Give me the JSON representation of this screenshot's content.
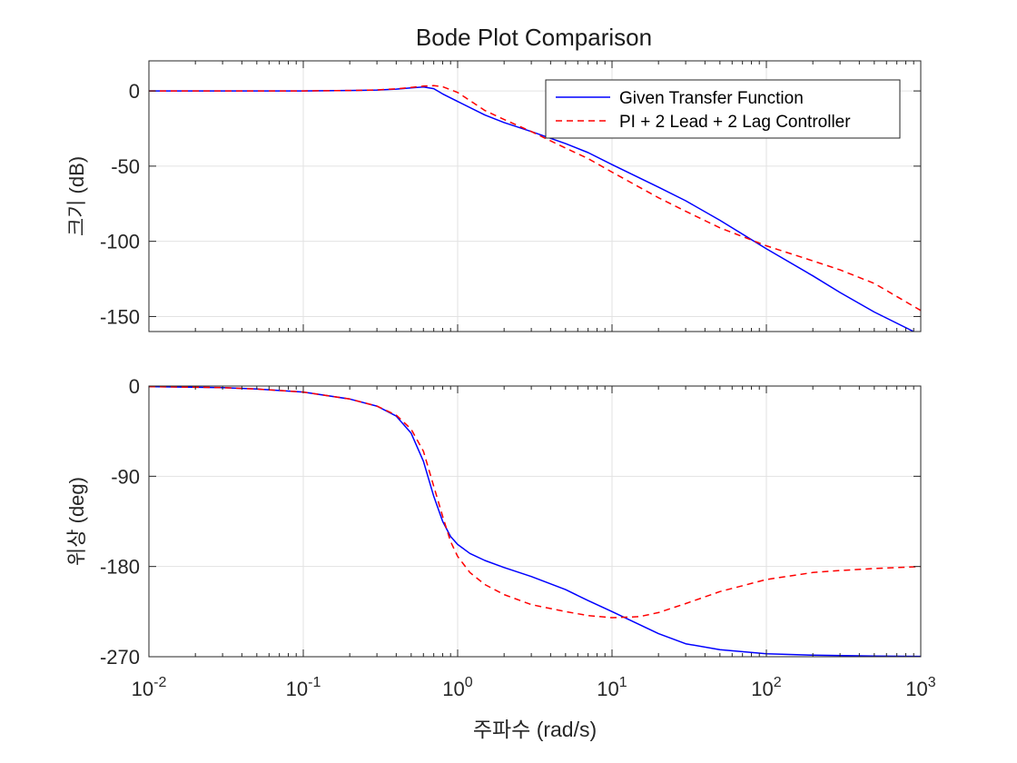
{
  "chart_data": {
    "type": "line",
    "title": "Bode Plot Comparison",
    "xlabel": "주파수 (rad/s)",
    "xscale": "log",
    "xlim": [
      0.01,
      1000
    ],
    "x_ticks": [
      {
        "value": 0.01,
        "base": "10",
        "exp": "-2"
      },
      {
        "value": 0.1,
        "base": "10",
        "exp": "-1"
      },
      {
        "value": 1,
        "base": "10",
        "exp": "0"
      },
      {
        "value": 10,
        "base": "10",
        "exp": "1"
      },
      {
        "value": 100,
        "base": "10",
        "exp": "2"
      },
      {
        "value": 1000,
        "base": "10",
        "exp": "3"
      }
    ],
    "grid": true,
    "colors": {
      "given": "#0000ff",
      "controller": "#ff0000",
      "grid": "#e2e2e2",
      "axis": "#262626",
      "text": "#262626"
    },
    "legend": {
      "placement": "top-right",
      "entries": [
        {
          "label": "Given Transfer Function",
          "style": "solid",
          "color": "#0000ff"
        },
        {
          "label": "PI + 2 Lead + 2 Lag Controller",
          "style": "dashed",
          "color": "#ff0000"
        }
      ]
    },
    "panels": [
      {
        "id": "magnitude",
        "ylabel": "크기 (dB)",
        "ylim": [
          -160,
          20
        ],
        "yticks": [
          0,
          -50,
          -100,
          -150
        ],
        "ytick_labels": [
          "0",
          "-50",
          "-100",
          "-150"
        ],
        "series": [
          {
            "name": "Given Transfer Function",
            "x": [
              0.01,
              0.05,
              0.1,
              0.2,
              0.3,
              0.4,
              0.5,
              0.6,
              0.7,
              0.8,
              1.0,
              1.5,
              2,
              3,
              5,
              7,
              10,
              20,
              30,
              50,
              100,
              200,
              300,
              500,
              900
            ],
            "y": [
              0,
              0,
              0,
              0.3,
              0.6,
              1.2,
              2.0,
              2.6,
              1.5,
              -2,
              -7,
              -16,
              -21,
              -27,
              -35,
              -41,
              -49,
              -64,
              -73,
              -86,
              -105,
              -123,
              -134,
              -147,
              -160
            ]
          },
          {
            "name": "PI + 2 Lead + 2 Lag Controller",
            "x": [
              0.01,
              0.05,
              0.1,
              0.2,
              0.3,
              0.4,
              0.5,
              0.6,
              0.7,
              0.8,
              1.0,
              1.5,
              2,
              3,
              5,
              7,
              10,
              20,
              30,
              50,
              100,
              200,
              300,
              500,
              1000
            ],
            "y": [
              0,
              0,
              0,
              0.3,
              0.7,
              1.4,
              2.3,
              3.2,
              3.5,
              2.8,
              -1,
              -13,
              -19,
              -27,
              -38,
              -45,
              -54,
              -71,
              -80,
              -91,
              -103,
              -113,
              -119,
              -128,
              -146
            ]
          }
        ]
      },
      {
        "id": "phase",
        "ylabel": "위상 (deg)",
        "ylim": [
          -270,
          0
        ],
        "yticks": [
          0,
          -90,
          -180,
          -270
        ],
        "ytick_labels": [
          "0",
          "-90",
          "-180",
          "-270"
        ],
        "series": [
          {
            "name": "Given Transfer Function",
            "x": [
              0.01,
              0.03,
              0.05,
              0.1,
              0.2,
              0.3,
              0.4,
              0.5,
              0.6,
              0.7,
              0.8,
              0.9,
              1.0,
              1.2,
              1.5,
              2,
              3,
              5,
              7,
              10,
              20,
              30,
              50,
              100,
              200,
              500,
              1000
            ],
            "y": [
              -0.5,
              -1.5,
              -3,
              -6,
              -13,
              -20,
              -30,
              -47,
              -75,
              -110,
              -135,
              -150,
              -158,
              -167,
              -174,
              -181,
              -190,
              -203,
              -214,
              -225,
              -247,
              -257,
              -263,
              -267,
              -268.5,
              -269.3,
              -269.6
            ]
          },
          {
            "name": "PI + 2 Lead + 2 Lag Controller",
            "x": [
              0.01,
              0.03,
              0.05,
              0.1,
              0.2,
              0.3,
              0.4,
              0.5,
              0.6,
              0.7,
              0.8,
              0.9,
              1.0,
              1.2,
              1.5,
              2,
              3,
              5,
              7,
              10,
              15,
              20,
              30,
              50,
              100,
              200,
              300,
              500,
              1000
            ],
            "y": [
              -0.5,
              -1.5,
              -3,
              -6,
              -13,
              -20,
              -29,
              -43,
              -65,
              -100,
              -130,
              -155,
              -170,
              -186,
              -198,
              -208,
              -218,
              -225,
              -229,
              -231,
              -230,
              -226,
              -217,
              -205,
              -193,
              -186,
              -184,
              -182,
              -180
            ]
          }
        ]
      }
    ]
  }
}
